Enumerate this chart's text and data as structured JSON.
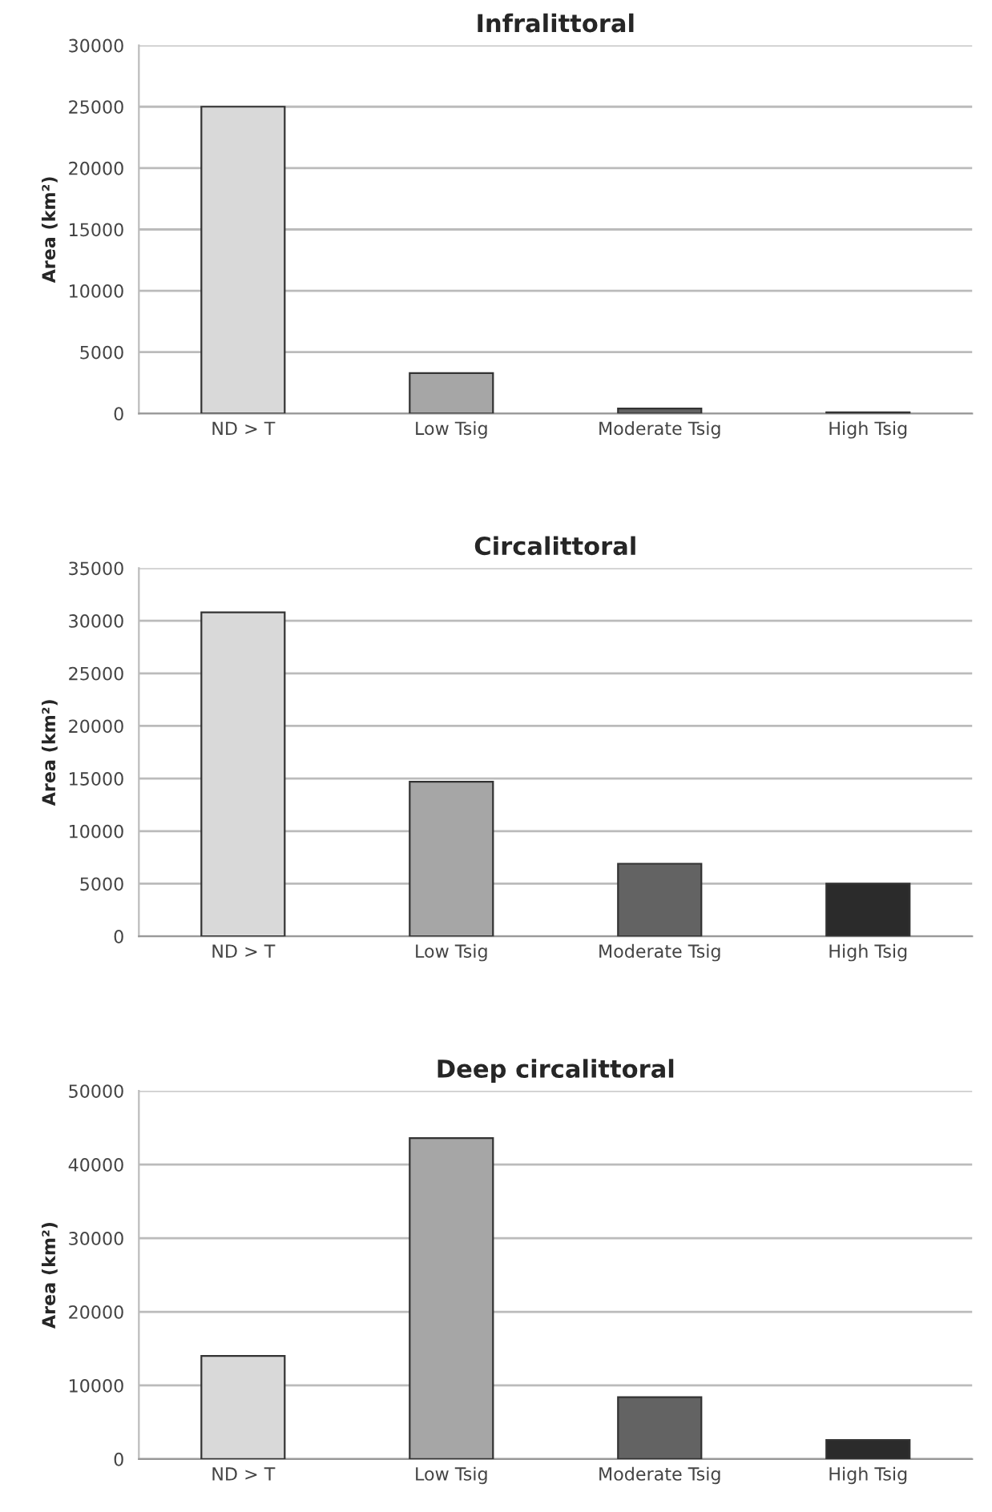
{
  "chart_data": [
    {
      "type": "bar",
      "title": "Infralittoral",
      "ylabel": "Area (km²)",
      "categories": [
        "ND > T",
        "Low Tsig",
        "Moderate Tsig",
        "High Tsig"
      ],
      "values": [
        25000,
        3300,
        400,
        100
      ],
      "colors": [
        "#d9d9d9",
        "#a6a6a6",
        "#636363",
        "#2b2b2b"
      ],
      "ylim": [
        0,
        30000
      ],
      "yticks": [
        0,
        5000,
        10000,
        15000,
        20000,
        25000,
        30000
      ],
      "grid": "y"
    },
    {
      "type": "bar",
      "title": "Circalittoral",
      "ylabel": "Area (km²)",
      "categories": [
        "ND > T",
        "Low Tsig",
        "Moderate Tsig",
        "High Tsig"
      ],
      "values": [
        30800,
        14700,
        6900,
        5000
      ],
      "colors": [
        "#d9d9d9",
        "#a6a6a6",
        "#636363",
        "#2b2b2b"
      ],
      "ylim": [
        0,
        35000
      ],
      "yticks": [
        0,
        5000,
        10000,
        15000,
        20000,
        25000,
        30000,
        35000
      ],
      "grid": "y"
    },
    {
      "type": "bar",
      "title": "Deep circalittoral",
      "ylabel": "Area (km²)",
      "categories": [
        "ND > T",
        "Low Tsig",
        "Moderate Tsig",
        "High Tsig"
      ],
      "values": [
        14000,
        43600,
        8400,
        2600
      ],
      "colors": [
        "#d9d9d9",
        "#a6a6a6",
        "#636363",
        "#2b2b2b"
      ],
      "ylim": [
        0,
        50000
      ],
      "yticks": [
        0,
        10000,
        20000,
        30000,
        40000,
        50000
      ],
      "grid": "y"
    }
  ]
}
